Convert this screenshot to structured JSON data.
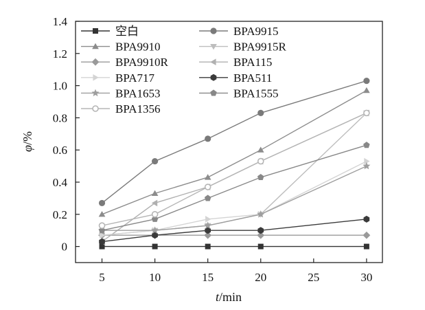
{
  "chart_data": {
    "type": "line",
    "xlabel_italic": "t",
    "xlabel_rest": "/min",
    "ylabel_italic": "φ",
    "ylabel_rest": "/%",
    "x": [
      5,
      10,
      15,
      20,
      30
    ],
    "xlim": [
      2.5,
      31.5
    ],
    "ylim": [
      -0.1,
      1.4
    ],
    "xticks": [
      5,
      10,
      15,
      20,
      25,
      30
    ],
    "xtick_labels": [
      "5",
      "10",
      "15",
      "20",
      "25",
      "30"
    ],
    "yticks": [
      0,
      0.2,
      0.4,
      0.6,
      0.8,
      1.0,
      1.2,
      1.4
    ],
    "ytick_labels": [
      "0",
      "0.2",
      "0.4",
      "0.6",
      "0.8",
      "1.0",
      "1.2",
      "1.4"
    ],
    "grid": false,
    "legend_position": "top-left",
    "series": [
      {
        "name": "空白",
        "values": [
          0,
          0,
          0,
          0,
          0
        ],
        "marker": "square",
        "color": "#333333"
      },
      {
        "name": "BPA9915",
        "values": [
          0.27,
          0.53,
          0.67,
          0.83,
          1.03
        ],
        "marker": "circle",
        "color": "#7a7a7a"
      },
      {
        "name": "BPA9910",
        "values": [
          0.2,
          0.33,
          0.43,
          0.6,
          0.97
        ],
        "marker": "triangle-up",
        "color": "#8c8c8c"
      },
      {
        "name": "BPA9915R",
        "values": [
          0.07,
          0.1,
          0.13,
          0.2,
          0.83
        ],
        "marker": "triangle-down",
        "color": "#bdbdbd"
      },
      {
        "name": "BPA9910R",
        "values": [
          0.07,
          0.07,
          0.07,
          0.07,
          0.07
        ],
        "marker": "diamond",
        "color": "#9a9a9a"
      },
      {
        "name": "BPA115",
        "values": [
          0.03,
          0.27,
          0.37,
          0.53,
          0.83
        ],
        "marker": "triangle-left",
        "color": "#b0b0b0"
      },
      {
        "name": "BPA717",
        "values": [
          0.07,
          0.1,
          0.17,
          0.2,
          0.53
        ],
        "marker": "triangle-right",
        "color": "#d4d4d4"
      },
      {
        "name": "BPA511",
        "values": [
          0.03,
          0.07,
          0.1,
          0.1,
          0.17
        ],
        "marker": "hexagon",
        "color": "#3a3a3a"
      },
      {
        "name": "BPA1653",
        "values": [
          0.1,
          0.1,
          0.13,
          0.2,
          0.5
        ],
        "marker": "star",
        "color": "#9e9e9e"
      },
      {
        "name": "BPA1555",
        "values": [
          0.1,
          0.17,
          0.3,
          0.43,
          0.63
        ],
        "marker": "pentagon",
        "color": "#888888"
      },
      {
        "name": "BPA1356",
        "values": [
          0.13,
          0.2,
          0.37,
          0.53,
          0.83
        ],
        "marker": "circle-open",
        "color": "#b5b5b5"
      }
    ]
  }
}
